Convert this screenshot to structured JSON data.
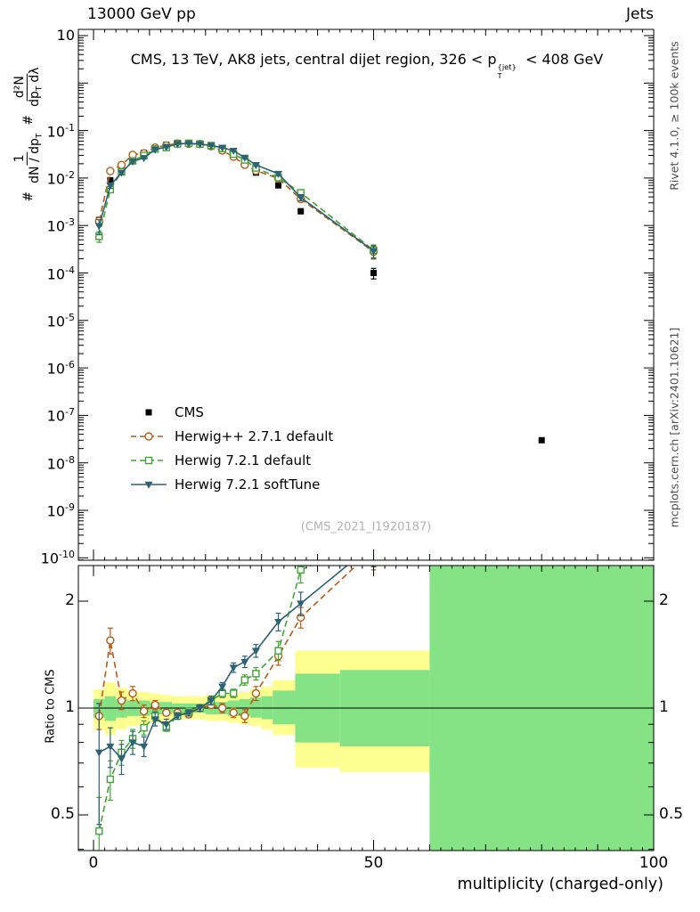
{
  "header": {
    "left": "13000 GeV pp",
    "right": "Jets"
  },
  "main_plot": {
    "title_pre": "CMS, 13 TeV, AK8 jets, central dijet region, 326 < p",
    "title_sup": "{jet}",
    "title_sub": "T",
    "title_post": " < 408 GeV",
    "watermark": "(CMS_2021_I1920187)",
    "ylabel": {
      "hash1": "#",
      "num1": "1",
      "den1": "dN / dp",
      "den1_sub": "T",
      "hash2": "#",
      "num2": "d²N",
      "den2a": "dp",
      "den2a_sub": "T",
      "den2b": "dλ"
    }
  },
  "ratio_plot": {
    "ylabel": "Ratio to CMS"
  },
  "xaxis": {
    "label": "multiplicity (charged-only)"
  },
  "side_notes": {
    "right_top": "Rivet 4.1.0, ≥ 100k events",
    "right_bottom": "mcplots.cern.ch [arXiv:2401.10621]"
  },
  "colors": {
    "cms": "#000000",
    "herwigpp": "#b85c18",
    "herwig7_default": "#3fa535",
    "herwig7_soft": "#2d6173",
    "band_yellow": "#fdff8f",
    "band_green": "#85e285"
  },
  "chart_data": [
    {
      "type": "line",
      "panel": "main",
      "title": "CMS, 13 TeV, AK8 jets, central dijet region, 326 < pT{jet} < 408 GeV",
      "xlabel": "multiplicity (charged-only)",
      "ylabel": "1/(dN/dpT) d²N/(dpT dλ)",
      "ylog": true,
      "ylim_exp": [
        -10,
        1
      ],
      "yticks_exp": [
        1,
        -1,
        -2,
        -3,
        -4,
        -5,
        -6,
        -7,
        -8,
        -9,
        -10
      ],
      "xlim": [
        -2.7,
        100
      ],
      "xticks": [
        0,
        50,
        100
      ],
      "legend_position": "middle-left",
      "x": [
        1,
        3,
        5,
        7,
        9,
        11,
        13,
        15,
        17,
        19,
        21,
        23,
        25,
        27,
        29,
        33,
        37,
        50,
        80
      ],
      "series": [
        {
          "name": "CMS",
          "color": "#000000",
          "line": "none",
          "marker": "square-filled",
          "values": [
            0.0013,
            0.009,
            0.018,
            0.028,
            0.034,
            0.043,
            0.05,
            0.055,
            0.055,
            0.052,
            0.046,
            0.038,
            0.029,
            0.02,
            0.013,
            0.007,
            0.002,
            0.0001,
            3e-08
          ],
          "yerr_rel": [
            0.15,
            0.06,
            0.04,
            0.03,
            0.02,
            0.02,
            0.02,
            0.02,
            0.02,
            0.02,
            0.02,
            0.02,
            0.03,
            0.03,
            0.04,
            0.06,
            0.12,
            0.25,
            0.08
          ]
        },
        {
          "name": "Herwig++ 2.7.1 default",
          "color": "#b85c18",
          "line": "dashed",
          "marker": "circle-open",
          "values": [
            0.00124,
            0.014,
            0.0189,
            0.0308,
            0.0333,
            0.0439,
            0.0485,
            0.0534,
            0.0528,
            0.052,
            0.0469,
            0.038,
            0.0281,
            0.019,
            0.0143,
            0.0098,
            0.0036,
            0.00028,
            null
          ],
          "yerr_rel": [
            0.2,
            0.12,
            0.06,
            0.04,
            0.03,
            0.03,
            0.02,
            0.02,
            0.02,
            0.02,
            0.02,
            0.03,
            0.03,
            0.04,
            0.05,
            0.08,
            0.12,
            0.3,
            null
          ]
        },
        {
          "name": "Herwig 7.2.1 default",
          "color": "#3fa535",
          "line": "dashed",
          "marker": "square-open",
          "values": [
            0.00059,
            0.0057,
            0.0135,
            0.023,
            0.0299,
            0.0409,
            0.044,
            0.0523,
            0.0539,
            0.052,
            0.0483,
            0.0418,
            0.0319,
            0.024,
            0.0163,
            0.0102,
            0.0049,
            0.0003,
            null
          ],
          "yerr_rel": [
            0.25,
            0.12,
            0.07,
            0.05,
            0.04,
            0.03,
            0.02,
            0.02,
            0.02,
            0.02,
            0.02,
            0.03,
            0.03,
            0.04,
            0.05,
            0.08,
            0.15,
            0.3,
            null
          ]
        },
        {
          "name": "Herwig 7.2.1 softTune",
          "color": "#2d6173",
          "line": "solid",
          "marker": "triangle-down-filled",
          "values": [
            0.00098,
            0.007,
            0.013,
            0.0224,
            0.0265,
            0.04,
            0.045,
            0.0523,
            0.0534,
            0.052,
            0.0483,
            0.0437,
            0.0377,
            0.027,
            0.0189,
            0.0123,
            0.0039,
            0.00029,
            null
          ],
          "yerr_rel": [
            0.35,
            0.13,
            0.08,
            0.06,
            0.05,
            0.04,
            0.03,
            0.02,
            0.02,
            0.02,
            0.03,
            0.03,
            0.04,
            0.05,
            0.06,
            0.1,
            0.15,
            0.3,
            null
          ]
        }
      ]
    },
    {
      "type": "line",
      "panel": "ratio",
      "ylabel": "Ratio to CMS",
      "ylog": true,
      "ylim": [
        0.397,
        2.52
      ],
      "yticks": [
        0.5,
        1,
        2
      ],
      "yticks_minor": [
        0.4,
        0.6,
        0.7,
        0.8,
        0.9
      ],
      "reference_line": 1,
      "x": [
        1,
        3,
        5,
        7,
        9,
        11,
        13,
        15,
        17,
        19,
        21,
        23,
        25,
        27,
        29,
        33,
        37,
        50,
        80
      ],
      "bands": {
        "yellow": [
          [
            0,
            2,
            0.87,
            1.13
          ],
          [
            2,
            4,
            0.84,
            1.18
          ],
          [
            4,
            6,
            0.87,
            1.14
          ],
          [
            6,
            8,
            0.89,
            1.12
          ],
          [
            8,
            10,
            0.9,
            1.11
          ],
          [
            10,
            12,
            0.91,
            1.1
          ],
          [
            12,
            14,
            0.92,
            1.09
          ],
          [
            14,
            16,
            0.93,
            1.08
          ],
          [
            16,
            18,
            0.93,
            1.08
          ],
          [
            18,
            20,
            0.93,
            1.08
          ],
          [
            20,
            22,
            0.92,
            1.09
          ],
          [
            22,
            24,
            0.92,
            1.09
          ],
          [
            24,
            26,
            0.91,
            1.1
          ],
          [
            26,
            28,
            0.9,
            1.11
          ],
          [
            28,
            30,
            0.89,
            1.13
          ],
          [
            30,
            32,
            0.87,
            1.15
          ],
          [
            32,
            36,
            0.84,
            1.2
          ],
          [
            36,
            44,
            0.68,
            1.45
          ],
          [
            44,
            60,
            0.66,
            1.45
          ]
        ],
        "green": [
          [
            0,
            2,
            0.94,
            1.06
          ],
          [
            2,
            4,
            0.92,
            1.08
          ],
          [
            4,
            6,
            0.94,
            1.06
          ],
          [
            6,
            8,
            0.95,
            1.05
          ],
          [
            8,
            10,
            0.95,
            1.05
          ],
          [
            10,
            12,
            0.96,
            1.04
          ],
          [
            12,
            14,
            0.96,
            1.04
          ],
          [
            14,
            16,
            0.97,
            1.03
          ],
          [
            16,
            18,
            0.97,
            1.03
          ],
          [
            18,
            20,
            0.97,
            1.03
          ],
          [
            20,
            22,
            0.96,
            1.04
          ],
          [
            22,
            24,
            0.96,
            1.04
          ],
          [
            24,
            26,
            0.95,
            1.05
          ],
          [
            26,
            28,
            0.95,
            1.06
          ],
          [
            28,
            30,
            0.94,
            1.07
          ],
          [
            30,
            32,
            0.93,
            1.08
          ],
          [
            32,
            36,
            0.9,
            1.12
          ],
          [
            36,
            44,
            0.8,
            1.25
          ],
          [
            44,
            60,
            0.78,
            1.28
          ],
          [
            60,
            100,
            0.3,
            2.6
          ]
        ]
      },
      "series": [
        {
          "name": "Herwig++ 2.7.1 default",
          "color": "#b85c18",
          "line": "dashed",
          "marker": "circle-open",
          "values": [
            0.95,
            1.55,
            1.05,
            1.1,
            0.98,
            1.02,
            0.97,
            0.97,
            0.96,
            1.0,
            1.02,
            1.0,
            0.97,
            0.95,
            1.1,
            1.4,
            1.8,
            2.8,
            null
          ],
          "yerr": [
            0.08,
            0.13,
            0.06,
            0.05,
            0.04,
            0.03,
            0.02,
            0.02,
            0.02,
            0.02,
            0.02,
            0.03,
            0.03,
            0.04,
            0.05,
            0.08,
            0.12,
            0.35,
            null
          ]
        },
        {
          "name": "Herwig 7.2.1 default",
          "color": "#3fa535",
          "line": "dashed",
          "marker": "square-open",
          "values": [
            0.45,
            0.63,
            0.75,
            0.82,
            0.88,
            0.95,
            0.88,
            0.95,
            0.98,
            1.0,
            1.05,
            1.1,
            1.1,
            1.2,
            1.25,
            1.45,
            2.45,
            3.0,
            null
          ],
          "yerr": [
            0.11,
            0.08,
            0.06,
            0.05,
            0.04,
            0.03,
            0.02,
            0.02,
            0.02,
            0.02,
            0.02,
            0.03,
            0.03,
            0.04,
            0.05,
            0.09,
            0.2,
            0.4,
            null
          ]
        },
        {
          "name": "Herwig 7.2.1 softTune",
          "color": "#2d6173",
          "line": "solid",
          "marker": "triangle-down-filled",
          "values": [
            0.75,
            0.78,
            0.72,
            0.8,
            0.78,
            0.93,
            0.9,
            0.95,
            0.97,
            1.0,
            1.05,
            1.15,
            1.3,
            1.35,
            1.45,
            1.75,
            1.97,
            2.9,
            null
          ],
          "yerr": [
            0.28,
            0.1,
            0.07,
            0.06,
            0.05,
            0.04,
            0.03,
            0.02,
            0.02,
            0.02,
            0.03,
            0.03,
            0.04,
            0.05,
            0.06,
            0.1,
            0.15,
            0.4,
            null
          ]
        }
      ]
    }
  ]
}
